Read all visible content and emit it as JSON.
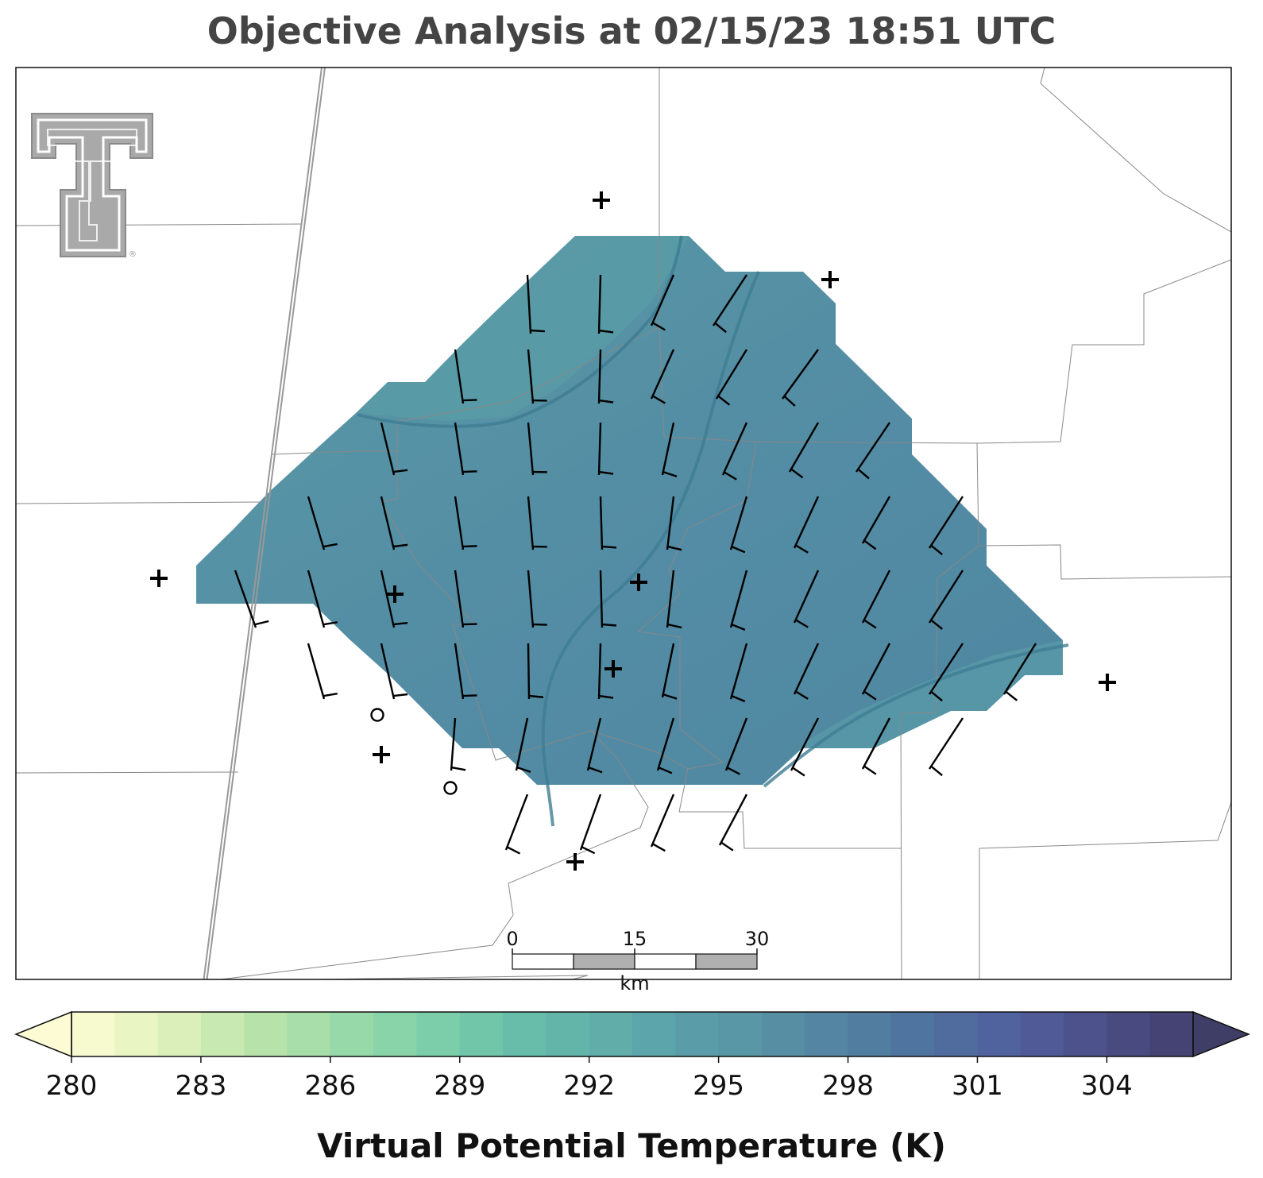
{
  "title": "Objective Analysis at 02/15/23 18:51 UTC",
  "colorbar": {
    "label": "Virtual Potential Temperature (K)",
    "min": 280,
    "max": 306,
    "step": 1,
    "extend": "both",
    "ticks": [
      "280",
      "283",
      "286",
      "289",
      "292",
      "295",
      "298",
      "301",
      "304"
    ],
    "colormap": "crest (yellow-green to dark blue-purple)"
  },
  "scale_bar": {
    "labels": [
      "0",
      "15",
      "30"
    ],
    "unit": "km"
  },
  "logo": {
    "name": "texas-tech-double-t-logo",
    "text": "®"
  },
  "colors": {
    "analysis_fill": "#528aa3",
    "analysis_fill_light": "#5a9aa6",
    "contour": "#3f7d93",
    "boundaries": "#888888",
    "highway": "#9a9a9a",
    "barb": "#000000",
    "title": "#444444"
  },
  "chart_data": {
    "type": "heatmap",
    "title": "Objective Analysis at 02/15/23 18:51 UTC",
    "field": "Virtual Potential Temperature (K)",
    "value_range_shown": [
      295,
      299
    ],
    "contour_levels": [
      296,
      298
    ],
    "wind_barbs": "southerly winds ~10 kt over analysis domain, veering to southwesterly in the east",
    "station_markers": "plus signs and open circles"
  }
}
